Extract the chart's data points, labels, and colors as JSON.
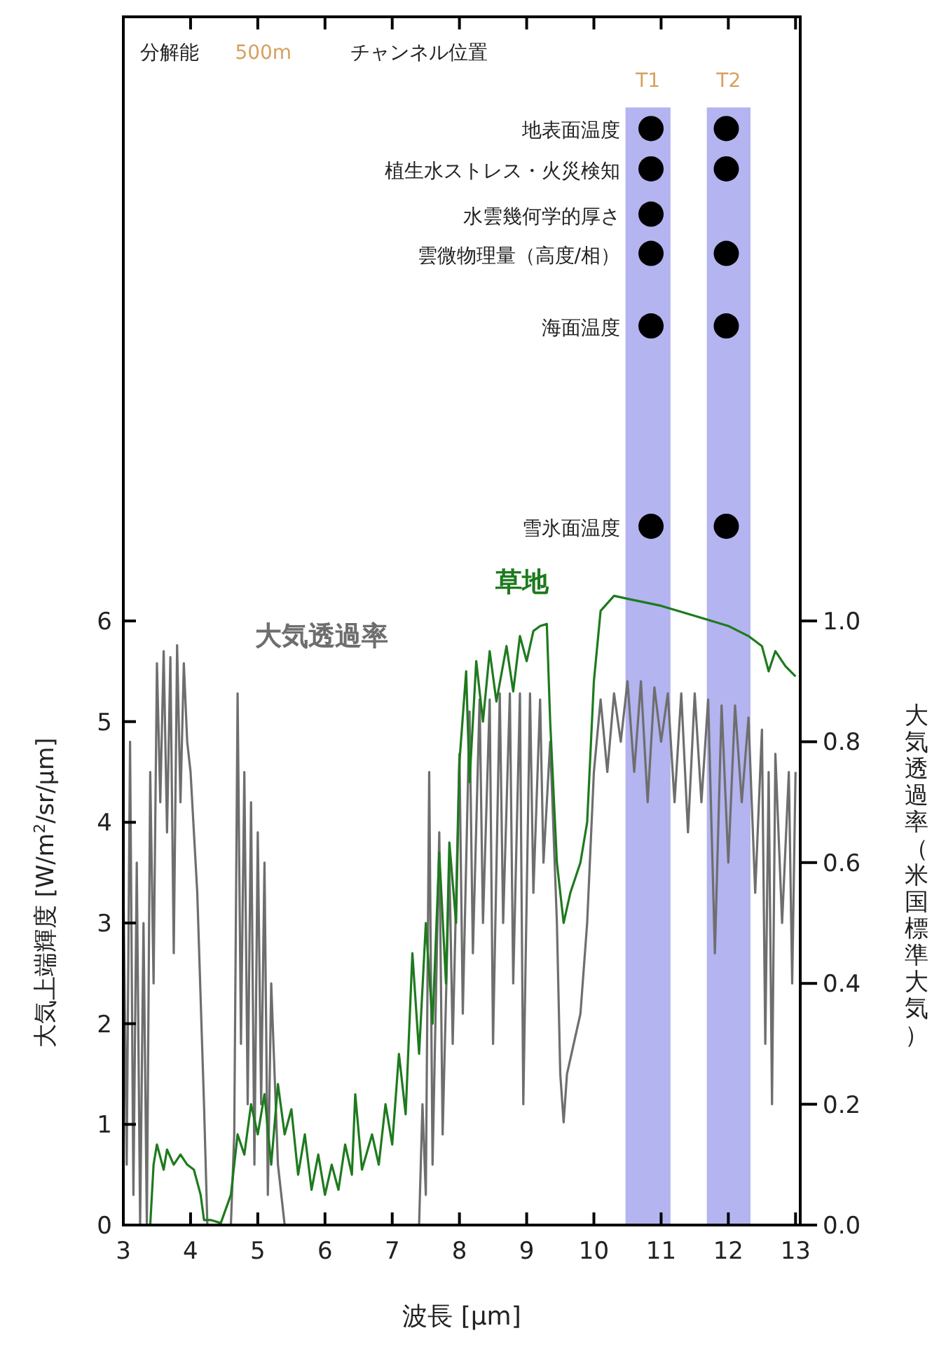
{
  "chart_data": {
    "type": "line",
    "xlabel": "波長 [μm]",
    "ylabel": "大気上端輝度 [W/m$^{2}$/sr/μm]",
    "y2label": "大気透過率（米国標準大気）",
    "xlim": [
      3,
      13.07
    ],
    "ylim": [
      0,
      12
    ],
    "y2lim": [
      0,
      2
    ],
    "xticks": [
      3,
      4,
      5,
      6,
      7,
      8,
      9,
      10,
      11,
      12,
      13
    ],
    "yticks": [
      0,
      1,
      2,
      3,
      4,
      5,
      6
    ],
    "y2ticks": [
      {
        "value": 0,
        "label": "0.0"
      },
      0.2,
      0.4,
      0.6,
      0.8,
      {
        "value": 1,
        "label": "1.0"
      }
    ],
    "bands": [
      {
        "axis": "x",
        "from": 10.47,
        "to": 11.14,
        "label": "T1",
        "color": "#b4b4f0"
      },
      {
        "axis": "x",
        "from": 11.68,
        "to": 12.33,
        "label": "T2",
        "color": "#b4b4f0"
      }
    ],
    "series": [
      {
        "name": "大気透過率",
        "type": "line",
        "axis": "y2",
        "color": "#6e6e6e",
        "x": [
          3.0,
          3.05,
          3.1,
          3.15,
          3.2,
          3.25,
          3.3,
          3.35,
          3.4,
          3.45,
          3.5,
          3.55,
          3.6,
          3.65,
          3.7,
          3.75,
          3.8,
          3.85,
          3.9,
          3.95,
          4.0,
          4.1,
          4.2,
          4.25,
          4.6,
          4.65,
          4.7,
          4.75,
          4.8,
          4.85,
          4.9,
          4.95,
          5.0,
          5.05,
          5.1,
          5.15,
          5.2,
          5.3,
          5.4,
          7.4,
          7.45,
          7.5,
          7.55,
          7.6,
          7.7,
          7.75,
          7.85,
          7.9,
          8.0,
          8.05,
          8.15,
          8.2,
          8.3,
          8.35,
          8.45,
          8.5,
          8.6,
          8.65,
          8.75,
          8.8,
          8.9,
          8.95,
          9.05,
          9.1,
          9.2,
          9.25,
          9.35,
          9.45,
          9.5,
          9.55,
          9.6,
          9.7,
          9.8,
          9.9,
          10.0,
          10.1,
          10.2,
          10.3,
          10.4,
          10.5,
          10.6,
          10.7,
          10.8,
          10.9,
          11.0,
          11.1,
          11.2,
          11.3,
          11.4,
          11.5,
          11.6,
          11.7,
          11.8,
          11.9,
          12.0,
          12.1,
          12.2,
          12.3,
          12.4,
          12.5,
          12.55,
          12.6,
          12.65,
          12.7,
          12.8,
          12.9,
          12.95,
          13.0
        ],
        "values": [
          0.58,
          0.1,
          0.8,
          0.05,
          0.6,
          0,
          0.5,
          0,
          0.75,
          0.4,
          0.93,
          0.7,
          0.95,
          0.65,
          0.94,
          0.45,
          0.96,
          0.7,
          0.93,
          0.8,
          0.75,
          0.55,
          0.2,
          0,
          0,
          0.15,
          0.88,
          0.3,
          0.75,
          0.2,
          0.7,
          0.1,
          0.65,
          0.2,
          0.6,
          0.05,
          0.4,
          0.1,
          0,
          0,
          0.2,
          0.05,
          0.75,
          0.1,
          0.65,
          0.15,
          0.6,
          0.3,
          0.78,
          0.35,
          0.85,
          0.45,
          0.87,
          0.5,
          0.87,
          0.3,
          0.88,
          0.5,
          0.88,
          0.4,
          0.88,
          0.2,
          0.88,
          0.55,
          0.87,
          0.6,
          0.8,
          0.5,
          0.25,
          0.17,
          0.25,
          0.3,
          0.35,
          0.5,
          0.75,
          0.87,
          0.75,
          0.88,
          0.8,
          0.9,
          0.75,
          0.9,
          0.7,
          0.89,
          0.8,
          0.88,
          0.7,
          0.88,
          0.65,
          0.88,
          0.7,
          0.87,
          0.45,
          0.86,
          0.6,
          0.86,
          0.7,
          0.84,
          0.55,
          0.82,
          0.3,
          0.75,
          0.2,
          0.78,
          0.5,
          0.75,
          0.4,
          0.75
        ]
      },
      {
        "name": "草地",
        "type": "line",
        "color": "#1e7a1e",
        "x": [
          3.4,
          3.45,
          3.5,
          3.6,
          3.65,
          3.75,
          3.85,
          3.95,
          4.05,
          4.15,
          4.2,
          4.3,
          4.45,
          4.6,
          4.7,
          4.8,
          4.9,
          5.0,
          5.1,
          5.2,
          5.3,
          5.4,
          5.5,
          5.6,
          5.7,
          5.8,
          5.9,
          6.0,
          6.1,
          6.2,
          6.3,
          6.4,
          6.45,
          6.55,
          6.7,
          6.8,
          6.9,
          7.0,
          7.1,
          7.2,
          7.3,
          7.4,
          7.5,
          7.6,
          7.7,
          7.8,
          7.85,
          7.95,
          8.0,
          8.1,
          8.15,
          8.25,
          8.35,
          8.45,
          8.55,
          8.7,
          8.8,
          8.9,
          9.0,
          9.1,
          9.2,
          9.3,
          9.35,
          9.45,
          9.55,
          9.65,
          9.8,
          9.9,
          10.0,
          10.1,
          10.3,
          10.5,
          11.0,
          11.5,
          12.0,
          12.3,
          12.5,
          12.6,
          12.7,
          12.85,
          13.0
        ],
        "values": [
          0,
          0.6,
          0.8,
          0.55,
          0.75,
          0.6,
          0.7,
          0.6,
          0.55,
          0.3,
          0.05,
          0.05,
          0.02,
          0.3,
          0.9,
          0.7,
          1.2,
          0.9,
          1.3,
          0.6,
          1.4,
          0.9,
          1.15,
          0.5,
          0.9,
          0.35,
          0.7,
          0.3,
          0.6,
          0.35,
          0.8,
          0.5,
          1.3,
          0.55,
          0.9,
          0.6,
          1.2,
          0.8,
          1.7,
          1.1,
          2.7,
          1.7,
          3.0,
          2.0,
          3.7,
          2.4,
          3.8,
          3.0,
          4.6,
          5.5,
          4.4,
          5.6,
          5.0,
          5.7,
          5.2,
          5.75,
          5.3,
          5.85,
          5.6,
          5.9,
          5.95,
          5.97,
          5.0,
          3.6,
          3.0,
          3.3,
          3.6,
          4.0,
          5.4,
          6.1,
          6.25,
          6.22,
          6.15,
          6.05,
          5.95,
          5.85,
          5.75,
          5.5,
          5.7,
          5.55,
          5.45
        ]
      },
      {
        "type": "scatter",
        "color": "#000000",
        "marker": "circle",
        "x": [
          10.85,
          10.85,
          10.85,
          10.85,
          10.85,
          10.85,
          11.97,
          11.97,
          11.97,
          11.97,
          11.97
        ],
        "values": [
          10.89,
          10.49,
          10.04,
          9.65,
          8.93,
          6.94,
          10.89,
          10.49,
          9.65,
          8.93,
          6.94
        ]
      }
    ],
    "annotations": [
      "分解能",
      "500m",
      "チャンネル位置",
      "地表面温度",
      "植生水ストレス・火災検知",
      "水雲幾何学的厚さ",
      "雲微物理量（高度/相）",
      "海面温度",
      "雪氷面温度"
    ]
  }
}
